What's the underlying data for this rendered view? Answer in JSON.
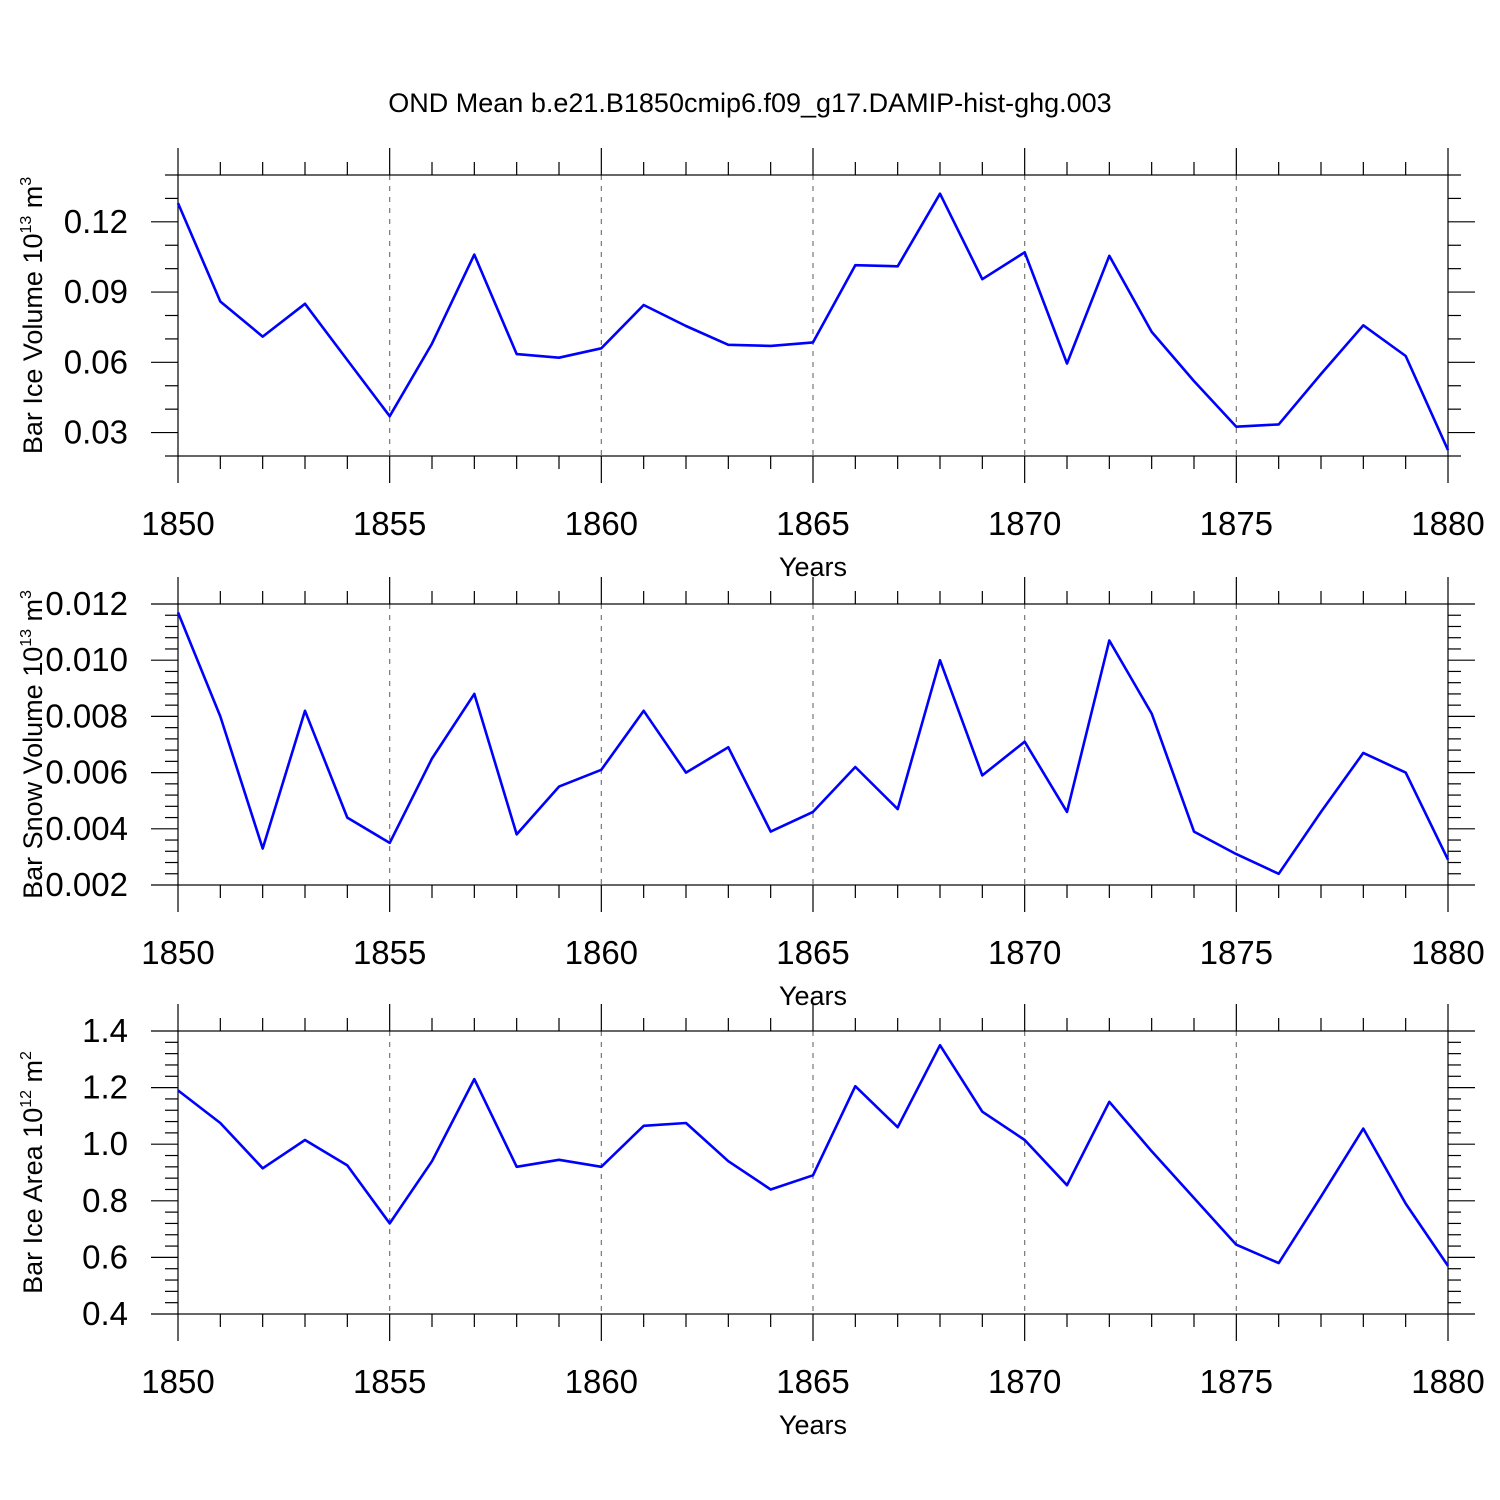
{
  "title": "OND Mean b.e21.B1850cmip6.f09_g17.DAMIP-hist-ghg.003",
  "colors": {
    "series": "#0000ff",
    "axis": "#000000",
    "grid": "#777777"
  },
  "chart_data": [
    {
      "type": "line",
      "title": "",
      "ylabel": {
        "text": "Bar Ice Volume 10",
        "sup": "13",
        "unit": " m",
        "unit_sup": "3"
      },
      "xlabel": "Years",
      "xlim": [
        1850,
        1880
      ],
      "ylim": [
        0.02,
        0.14
      ],
      "xticks": [
        1850,
        1855,
        1860,
        1865,
        1870,
        1875,
        1880
      ],
      "xtick_labels": [
        "1850",
        "1855",
        "1860",
        "1865",
        "1870",
        "1875",
        "1880"
      ],
      "yticks": [
        0.03,
        0.06,
        0.09,
        0.12
      ],
      "ytick_labels": [
        "0.03",
        "0.06",
        "0.09",
        "0.12"
      ],
      "yminor_step": 0.01,
      "grid": "x-dashed",
      "x": [
        1850,
        1851,
        1852,
        1853,
        1854,
        1855,
        1856,
        1857,
        1858,
        1859,
        1860,
        1861,
        1862,
        1863,
        1864,
        1865,
        1866,
        1867,
        1868,
        1869,
        1870,
        1871,
        1872,
        1873,
        1874,
        1875,
        1876,
        1877,
        1878,
        1879,
        1880
      ],
      "values": [
        0.128,
        0.086,
        0.071,
        0.085,
        0.061,
        0.037,
        0.068,
        0.106,
        0.0635,
        0.062,
        0.066,
        0.0845,
        0.0755,
        0.0675,
        0.067,
        0.0685,
        0.1015,
        0.101,
        0.132,
        0.0955,
        0.107,
        0.0595,
        0.1055,
        0.073,
        0.052,
        0.0325,
        0.0335,
        0.055,
        0.0758,
        0.0627,
        0.0225
      ]
    },
    {
      "type": "line",
      "title": "",
      "ylabel": {
        "text": "Bar Snow Volume 10",
        "sup": "13",
        "unit": " m",
        "unit_sup": "3"
      },
      "xlabel": "Years",
      "xlim": [
        1850,
        1880
      ],
      "ylim": [
        0.002,
        0.012
      ],
      "xticks": [
        1850,
        1855,
        1860,
        1865,
        1870,
        1875,
        1880
      ],
      "xtick_labels": [
        "1850",
        "1855",
        "1860",
        "1865",
        "1870",
        "1875",
        "1880"
      ],
      "yticks": [
        0.002,
        0.004,
        0.006,
        0.008,
        0.01,
        0.012
      ],
      "ytick_labels": [
        "0.002",
        "0.004",
        "0.006",
        "0.008",
        "0.010",
        "0.012"
      ],
      "yminor_step": 0.0004,
      "grid": "x-dashed",
      "x": [
        1850,
        1851,
        1852,
        1853,
        1854,
        1855,
        1856,
        1857,
        1858,
        1859,
        1860,
        1861,
        1862,
        1863,
        1864,
        1865,
        1866,
        1867,
        1868,
        1869,
        1870,
        1871,
        1872,
        1873,
        1874,
        1875,
        1876,
        1877,
        1878,
        1879,
        1880
      ],
      "values": [
        0.0117,
        0.008,
        0.0033,
        0.0082,
        0.0044,
        0.0035,
        0.0065,
        0.0088,
        0.0038,
        0.0055,
        0.0061,
        0.0082,
        0.006,
        0.0069,
        0.0039,
        0.0046,
        0.0062,
        0.0047,
        0.01,
        0.0059,
        0.0071,
        0.0046,
        0.0107,
        0.0081,
        0.0039,
        0.0031,
        0.0024,
        0.0046,
        0.0067,
        0.006,
        0.0029
      ]
    },
    {
      "type": "line",
      "title": "",
      "ylabel": {
        "text": "Bar Ice Area 10",
        "sup": "12",
        "unit": " m",
        "unit_sup": "2"
      },
      "xlabel": "Years",
      "xlim": [
        1850,
        1880
      ],
      "ylim": [
        0.4,
        1.4
      ],
      "xticks": [
        1850,
        1855,
        1860,
        1865,
        1870,
        1875,
        1880
      ],
      "xtick_labels": [
        "1850",
        "1855",
        "1860",
        "1865",
        "1870",
        "1875",
        "1880"
      ],
      "yticks": [
        0.4,
        0.6,
        0.8,
        1.0,
        1.2,
        1.4
      ],
      "ytick_labels": [
        "0.4",
        "0.6",
        "0.8",
        "1.0",
        "1.2",
        "1.4"
      ],
      "yminor_step": 0.04,
      "grid": "x-dashed",
      "x": [
        1850,
        1851,
        1852,
        1853,
        1854,
        1855,
        1856,
        1857,
        1858,
        1859,
        1860,
        1861,
        1862,
        1863,
        1864,
        1865,
        1866,
        1867,
        1868,
        1869,
        1870,
        1871,
        1872,
        1873,
        1874,
        1875,
        1876,
        1877,
        1878,
        1879,
        1880
      ],
      "values": [
        1.19,
        1.075,
        0.915,
        1.015,
        0.925,
        0.72,
        0.94,
        1.23,
        0.92,
        0.945,
        0.92,
        1.065,
        1.075,
        0.94,
        0.84,
        0.89,
        1.205,
        1.06,
        1.35,
        1.115,
        1.015,
        0.855,
        1.15,
        0.975,
        0.81,
        0.645,
        0.58,
        0.815,
        1.055,
        0.79,
        0.57
      ]
    }
  ]
}
